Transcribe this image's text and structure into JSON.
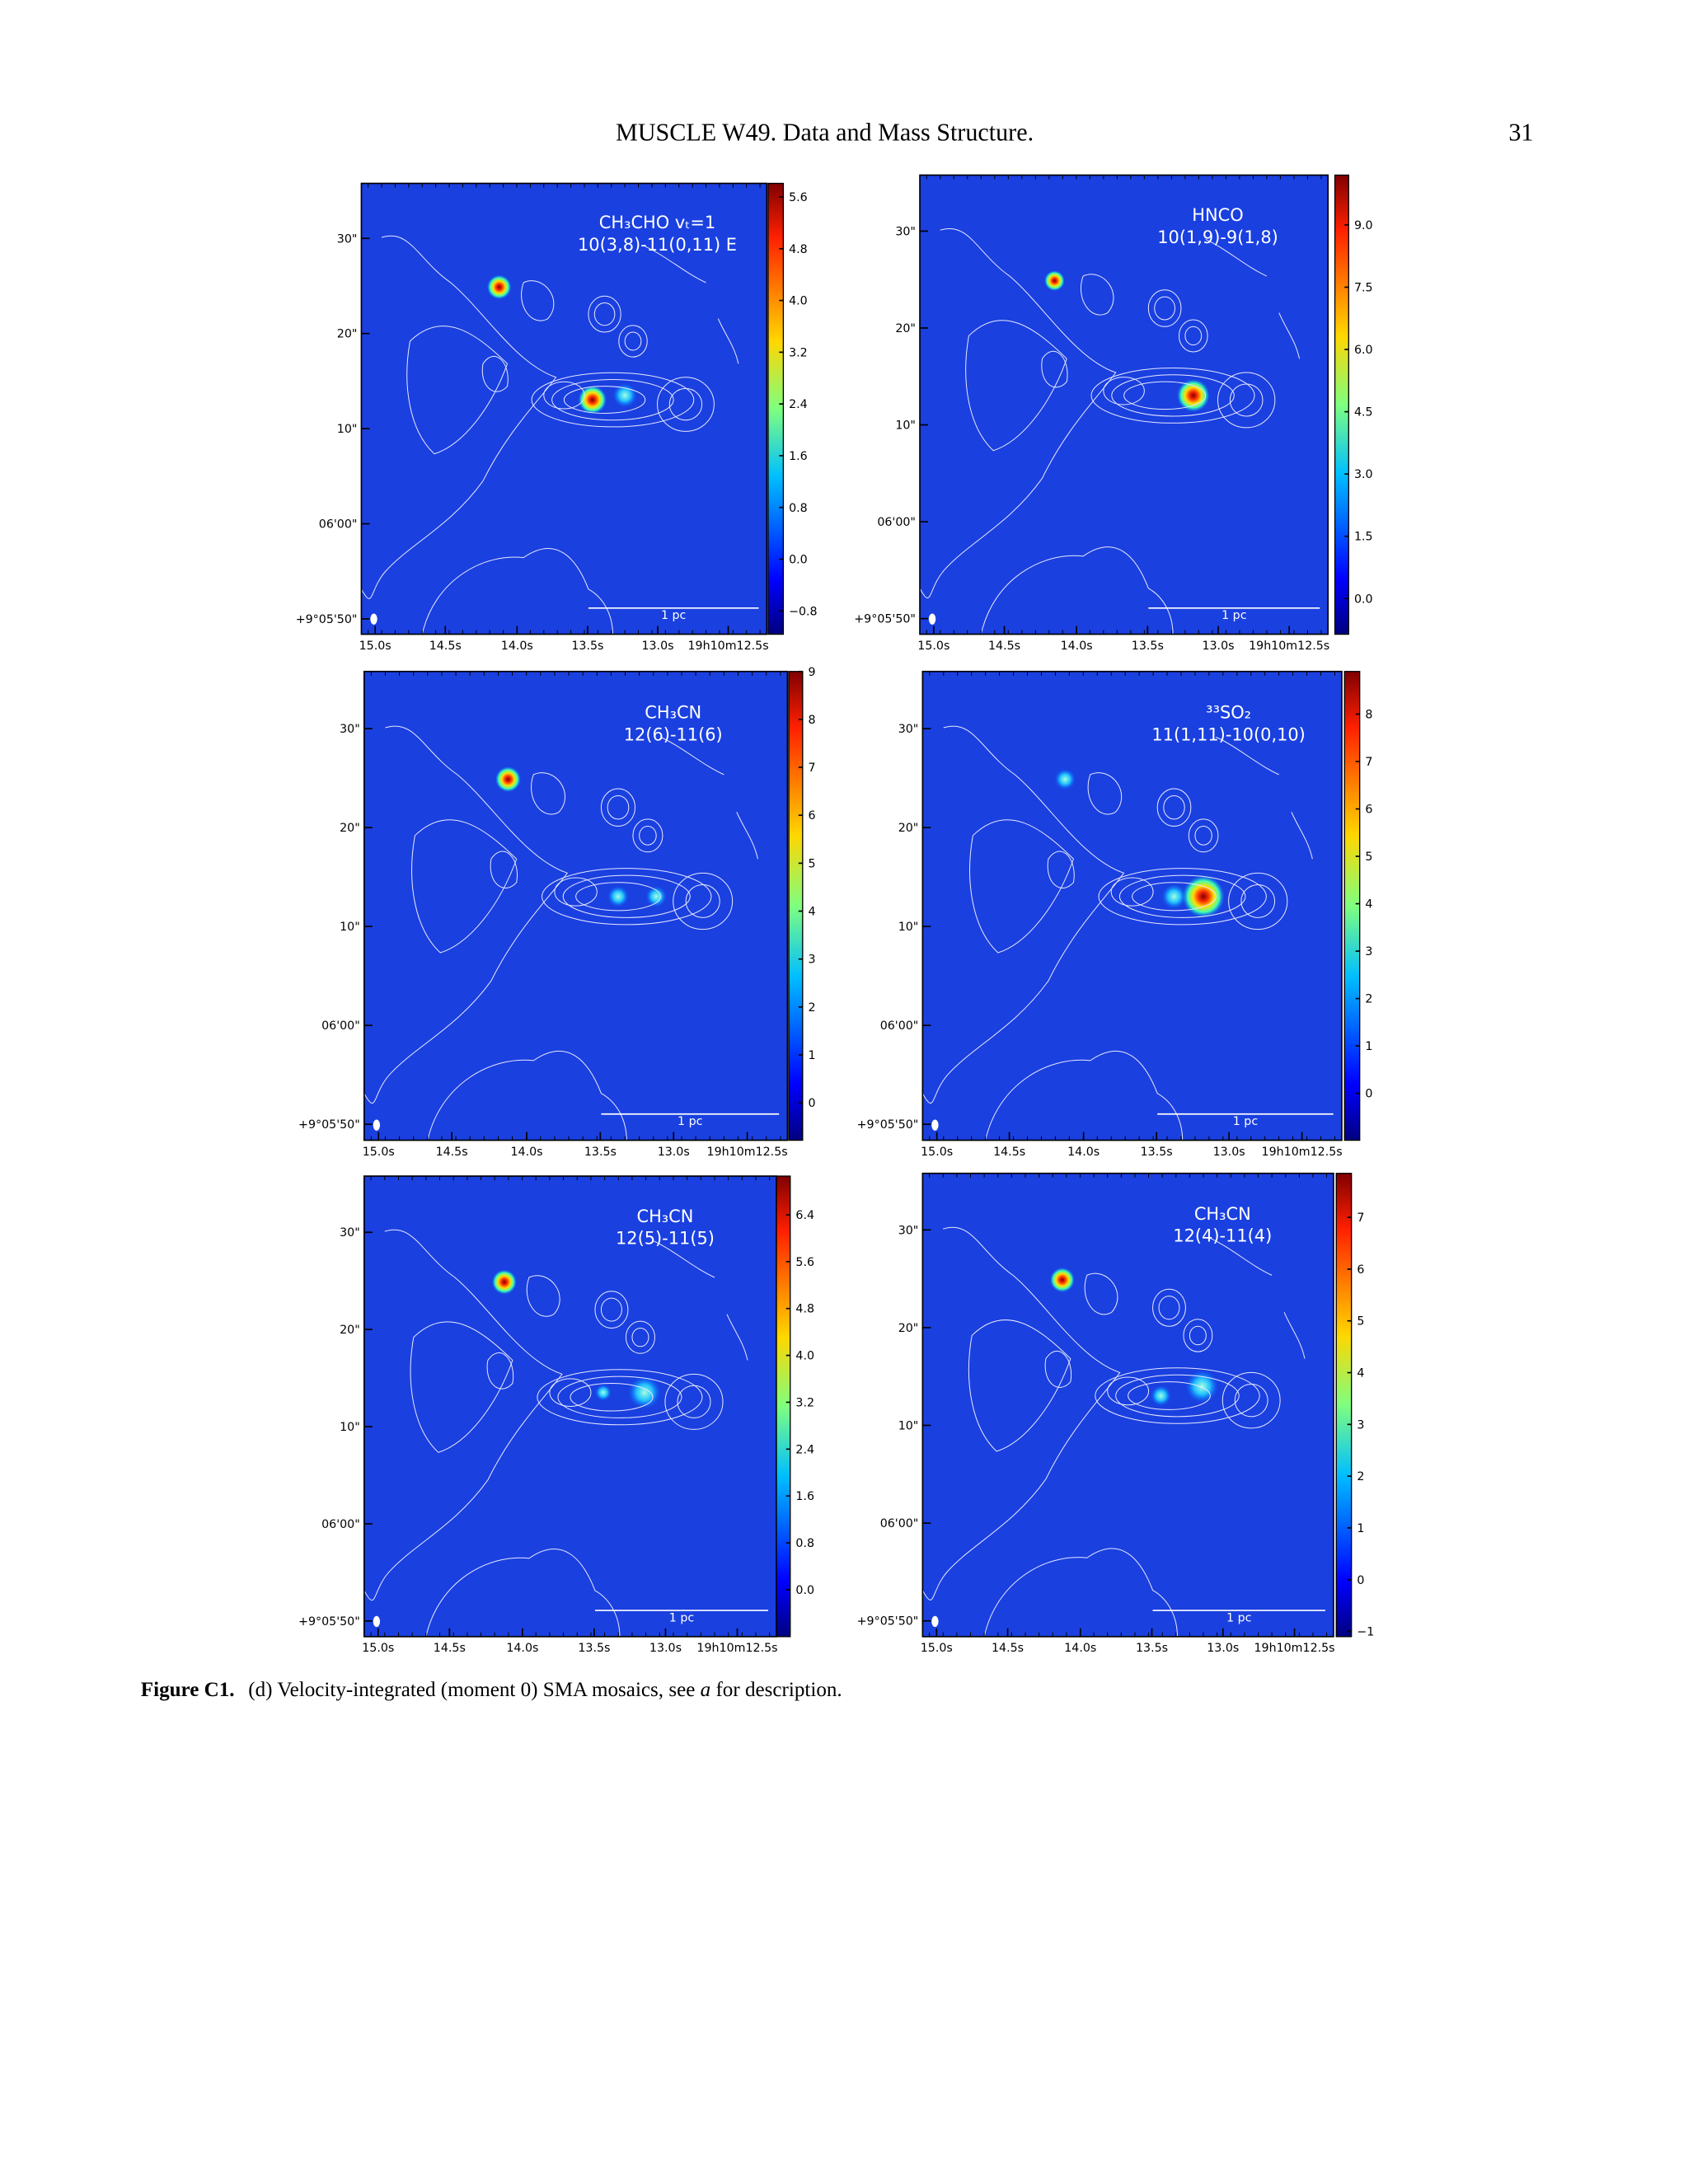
{
  "header": {
    "title": "MUSCLE W49. Data and Mass Structure.",
    "page_number": "31"
  },
  "axes": {
    "x_tick_labels": [
      "15.0s",
      "14.5s",
      "14.0s",
      "13.5s",
      "13.0s",
      "19h10m12.5s"
    ],
    "y_tick_labels": [
      "+9°05'50\"",
      "06'00\"",
      "10\"",
      "20\"",
      "30\""
    ]
  },
  "panels": [
    {
      "line": [
        "CH₃CHO vₜ=1",
        "10(3,8)-11(0,11) E"
      ],
      "scale_bar": "1 pc",
      "colorbar": {
        "lim": [
          -1.16,
          5.81
        ],
        "ticks": [
          {
            "value": -0.8,
            "label": "−0.8"
          },
          {
            "value": 0,
            "label": "0.0"
          },
          0.8,
          1.6,
          2.4,
          3.2,
          {
            "value": 4,
            "label": "4.0"
          },
          4.8,
          5.6
        ]
      }
    },
    {
      "line": [
        "HNCO",
        "10(1,9)-9(1,8)"
      ],
      "scale_bar": "1 pc",
      "colorbar": {
        "lim": [
          -0.86,
          10.2
        ],
        "ticks": [
          {
            "value": 0,
            "label": "0.0"
          },
          1.5,
          {
            "value": 3,
            "label": "3.0"
          },
          4.5,
          {
            "value": 6,
            "label": "6.0"
          },
          7.5,
          {
            "value": 9,
            "label": "9.0"
          }
        ]
      }
    },
    {
      "line": [
        "CH₃CN",
        "12(6)-11(6)"
      ],
      "scale_bar": "1 pc",
      "colorbar": {
        "lim": [
          -0.78,
          9
        ],
        "ticks": [
          0,
          1,
          2,
          3,
          4,
          5,
          6,
          7,
          8,
          9
        ]
      }
    },
    {
      "line": [
        "³³SO₂",
        "11(1,11)-10(0,10)"
      ],
      "scale_bar": "1 pc",
      "colorbar": {
        "lim": [
          -0.99,
          8.9
        ],
        "ticks": [
          0,
          1,
          2,
          3,
          4,
          5,
          6,
          7,
          8
        ]
      }
    },
    {
      "line": [
        "CH₃CN",
        "12(5)-11(5)"
      ],
      "scale_bar": "1 pc",
      "colorbar": {
        "lim": [
          -0.8,
          7.06
        ],
        "ticks": [
          {
            "value": 0,
            "label": "0.0"
          },
          0.8,
          1.6,
          2.4,
          3.2,
          {
            "value": 4,
            "label": "4.0"
          },
          4.8,
          5.6,
          6.4
        ]
      }
    },
    {
      "line": [
        "CH₃CN",
        "12(4)-11(4)"
      ],
      "scale_bar": "1 pc",
      "colorbar": {
        "lim": [
          -1.1,
          7.85
        ],
        "ticks": [
          {
            "value": -1,
            "label": "−1"
          },
          0,
          1,
          2,
          3,
          4,
          5,
          6,
          7
        ]
      }
    }
  ],
  "caption": {
    "label": "Figure C1.",
    "text": "(d) Velocity-integrated (moment 0) SMA mosaics, see ",
    "italic": "a",
    "text_end": " for description."
  }
}
